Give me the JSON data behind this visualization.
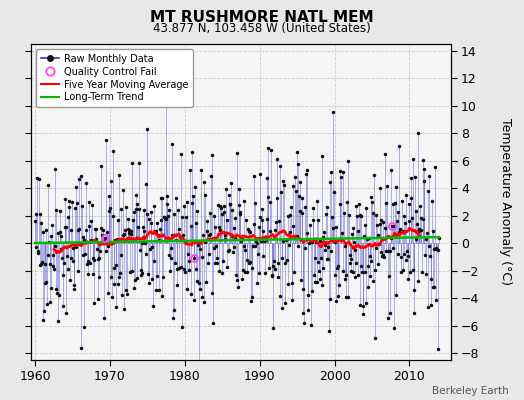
{
  "title": "MT RUSHMORE NATL MEM",
  "subtitle": "43.877 N, 103.458 W (United States)",
  "ylabel": "Temperature Anomaly (°C)",
  "attribution": "Berkeley Earth",
  "xlim": [
    1959.5,
    2015.5
  ],
  "ylim": [
    -8.5,
    14.5
  ],
  "yticks": [
    -8,
    -6,
    -4,
    -2,
    0,
    2,
    4,
    6,
    8,
    10,
    12,
    14
  ],
  "xticks": [
    1960,
    1970,
    1980,
    1990,
    2000,
    2010
  ],
  "fig_background": "#e8e8e8",
  "plot_background": "#f5f5f5",
  "raw_line_color": "#3333cc",
  "raw_dot_color": "#111111",
  "qc_fail_color": "#ff44ff",
  "moving_avg_color": "#ff0000",
  "trend_color": "#00bb00",
  "grid_color": "#cccccc",
  "seed": 42,
  "n_months": 648,
  "start_year": 1960,
  "noise_std": 3.0,
  "moving_avg_window": 60,
  "qc_seed": 77,
  "n_qc": 3
}
